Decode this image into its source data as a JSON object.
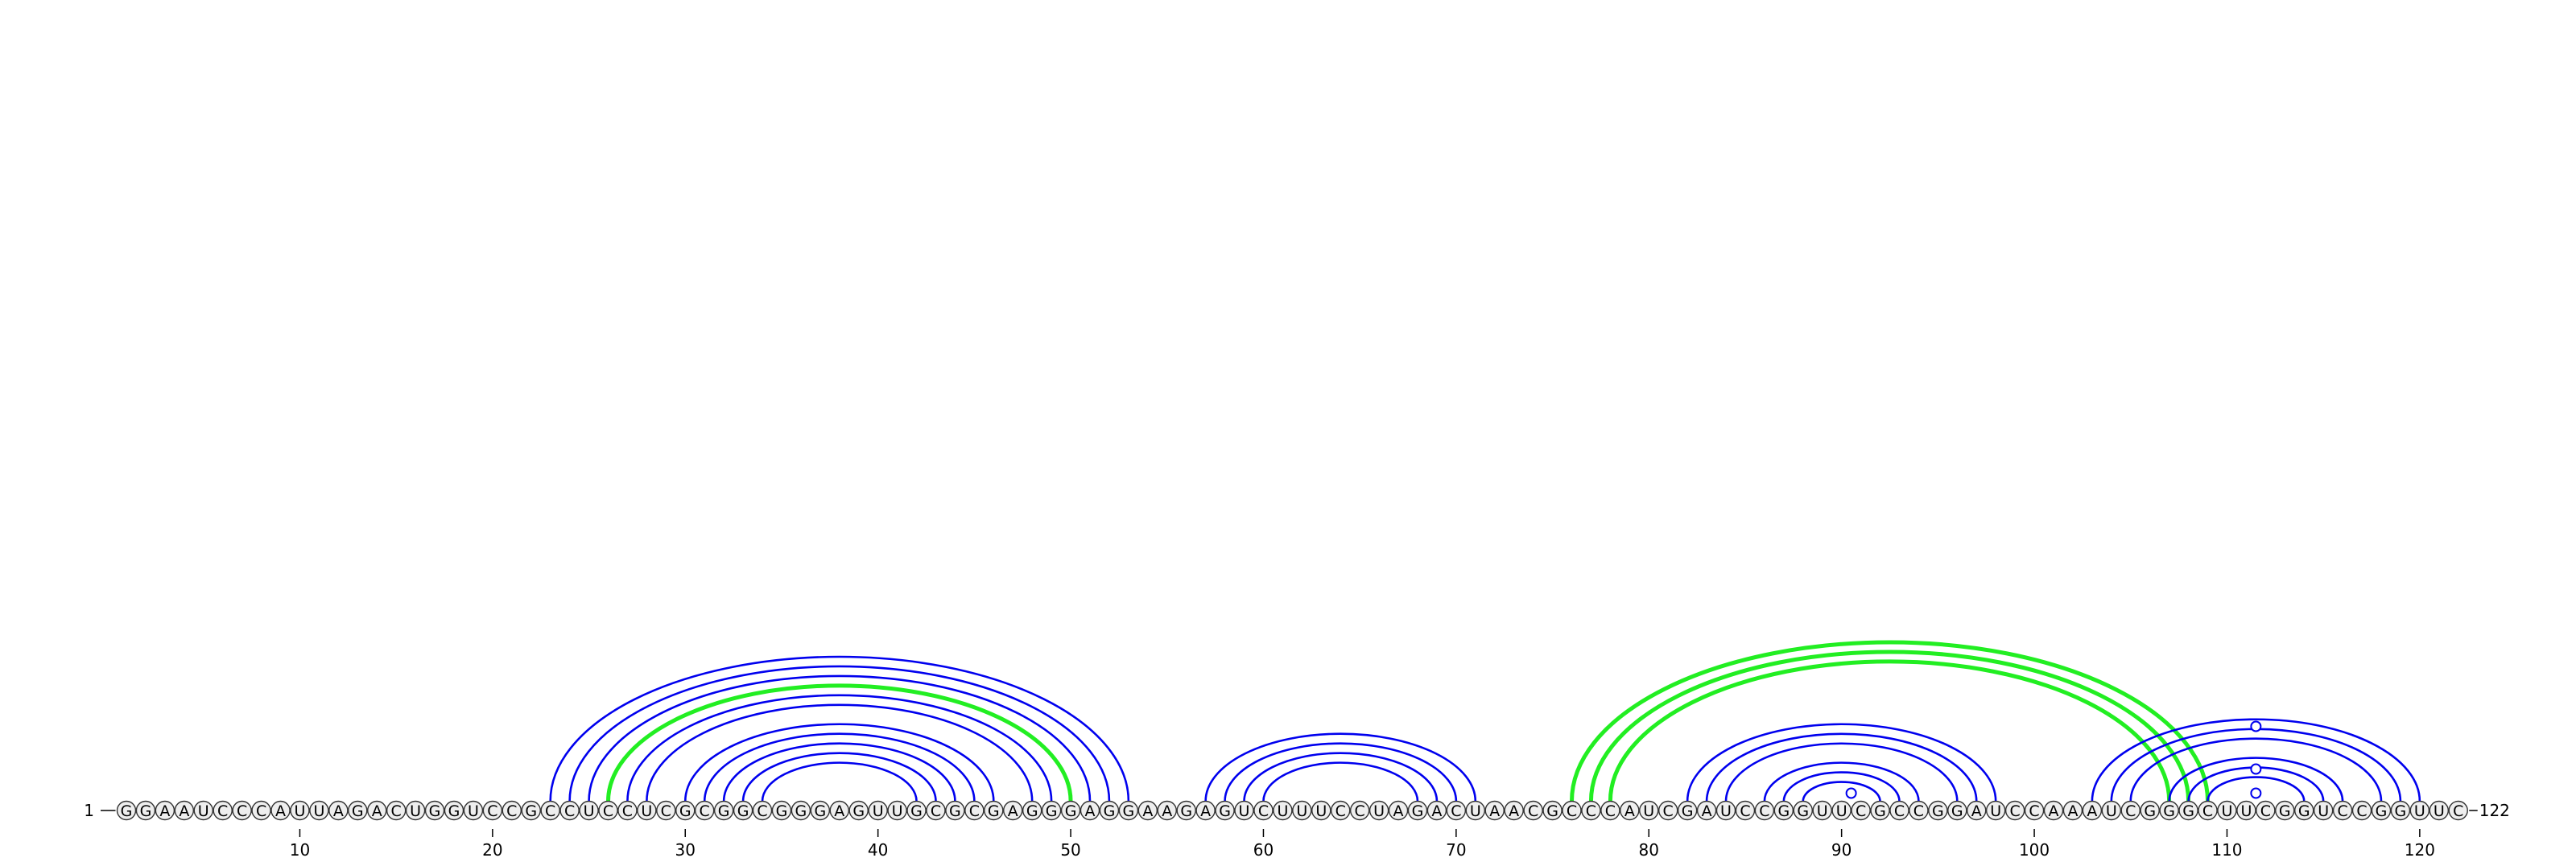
{
  "diagram": {
    "type": "rna-arc-diagram",
    "sequence": "GGAAUCCCAUUAGACUGGUCCGCCUCCUCGCGGCGGGAGUUGCGCGAGGGAGGAAGAGUCUUUCCUAGACUAACGCCCAUCGAUCCGGUUCGCCGGAUCCAAAUCGGGCUUCGGUCCGGUUC",
    "length": 122,
    "start_label": "1",
    "end_label": "122",
    "ticks": [
      10,
      20,
      30,
      40,
      50,
      60,
      70,
      80,
      90,
      100,
      110,
      120
    ],
    "colors": {
      "pair": "#0000ee",
      "alt_pair": "#22ee22",
      "nucleotide_fill": "#eeeeee",
      "nucleotide_stroke": "#333333",
      "text": "#000000"
    },
    "helices": [
      {
        "i": 23,
        "j": 53,
        "len": 3,
        "type": "pair"
      },
      {
        "i": 26,
        "j": 50,
        "len": 1,
        "type": "alt"
      },
      {
        "i": 27,
        "j": 49,
        "len": 2,
        "type": "pair"
      },
      {
        "i": 30,
        "j": 46,
        "len": 5,
        "type": "pair"
      },
      {
        "i": 57,
        "j": 71,
        "len": 4,
        "type": "pair"
      },
      {
        "i": 76,
        "j": 109,
        "len": 3,
        "type": "alt"
      },
      {
        "i": 82,
        "j": 98,
        "len": 3,
        "type": "pair"
      },
      {
        "i": 86,
        "j": 94,
        "len": 3,
        "type": "pair"
      },
      {
        "i": 103,
        "j": 120,
        "len": 3,
        "type": "pair"
      },
      {
        "i": 107,
        "j": 116,
        "len": 3,
        "type": "pair"
      }
    ]
  }
}
